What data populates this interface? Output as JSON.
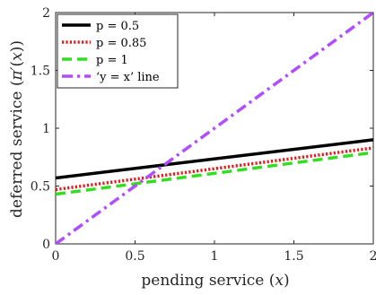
{
  "chart_data": {
    "type": "line",
    "xlabel": "pending service (x)",
    "ylabel": "deferred service (π′(x))",
    "xlim": [
      0,
      2
    ],
    "ylim": [
      0,
      2
    ],
    "xticks": [
      0,
      0.5,
      1,
      1.5,
      2
    ],
    "xtick_labels": [
      "0",
      "0.5",
      "1",
      "1.5",
      "2"
    ],
    "yticks": [
      0,
      0.5,
      1,
      1.5,
      2
    ],
    "ytick_labels": [
      "0",
      "0.5",
      "1",
      "1.5",
      "2"
    ],
    "grid": false,
    "legend_position": "top-left",
    "series": [
      {
        "name": "p = 0.5",
        "x": [
          0,
          2
        ],
        "y": [
          0.57,
          0.9
        ],
        "color": "#000000",
        "style": "solid"
      },
      {
        "name": "p = 0.85",
        "x": [
          0,
          2
        ],
        "y": [
          0.47,
          0.83
        ],
        "color": "#e41a1c",
        "style": "dotted"
      },
      {
        "name": "p = 1",
        "x": [
          0,
          2
        ],
        "y": [
          0.43,
          0.79
        ],
        "color": "#33dd22",
        "style": "dashed"
      },
      {
        "name": "‘y = x’ line",
        "x": [
          0,
          2
        ],
        "y": [
          0,
          2
        ],
        "color": "#b04dff",
        "style": "dashdot"
      }
    ]
  }
}
